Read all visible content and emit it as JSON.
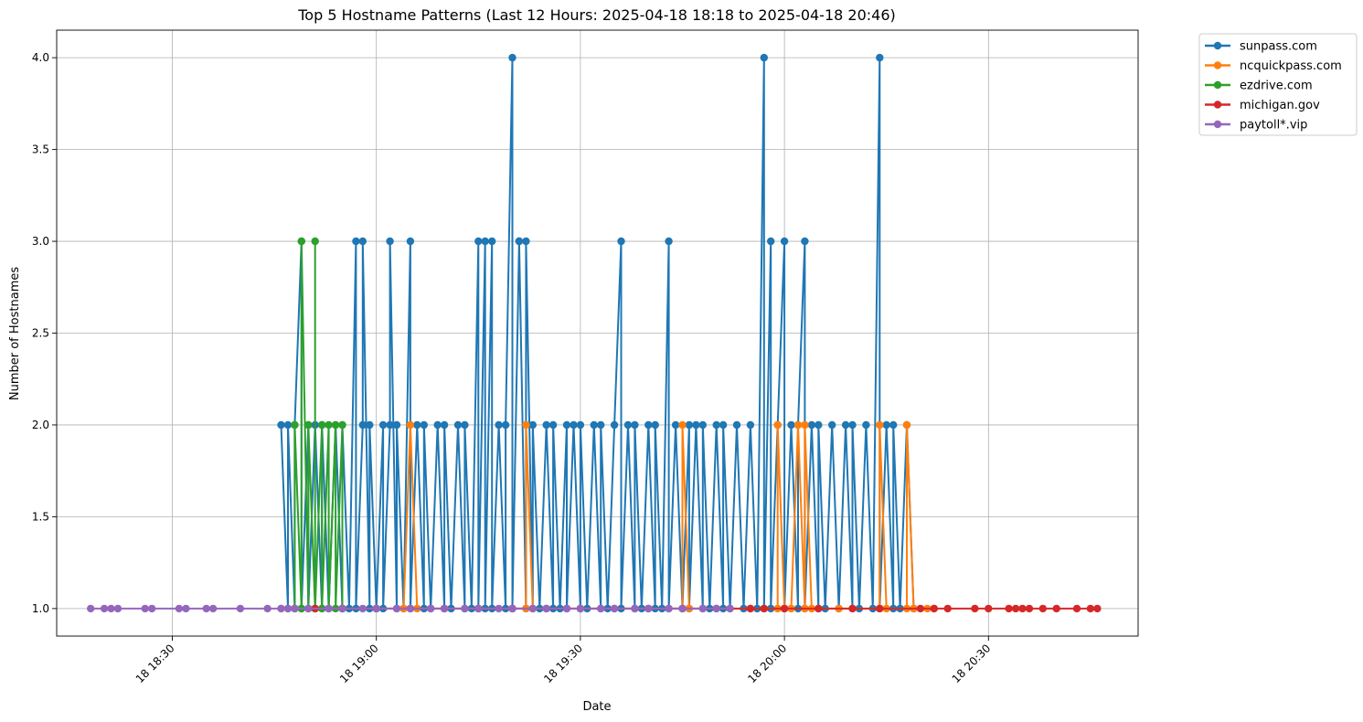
{
  "chart_data": {
    "type": "line",
    "title": "Top 5 Hostname Patterns (Last 12 Hours: 2025-04-18 18:18 to 2025-04-18 20:46)",
    "xlabel": "Date",
    "ylabel": "Number of Hostnames",
    "x_unit": "time (HH:MM on 2025-04-18)",
    "xlim": [
      "18:13",
      "20:52"
    ],
    "ylim": [
      0.85,
      4.15
    ],
    "x_ticks": [
      {
        "t": "18:30",
        "label": "18 18:30"
      },
      {
        "t": "19:00",
        "label": "18 19:00"
      },
      {
        "t": "19:30",
        "label": "18 19:30"
      },
      {
        "t": "20:00",
        "label": "18 20:00"
      },
      {
        "t": "20:30",
        "label": "18 20:30"
      }
    ],
    "y_ticks": [
      {
        "v": 1.0,
        "label": "1.0"
      },
      {
        "v": 1.5,
        "label": "1.5"
      },
      {
        "v": 2.0,
        "label": "2.0"
      },
      {
        "v": 2.5,
        "label": "2.5"
      },
      {
        "v": 3.0,
        "label": "3.0"
      },
      {
        "v": 3.5,
        "label": "3.5"
      },
      {
        "v": 4.0,
        "label": "4.0"
      }
    ],
    "grid": true,
    "legend_position": "outside top-right",
    "series": [
      {
        "name": "sunpass.com",
        "color": "#1f77b4",
        "points": [
          [
            "18:46",
            2
          ],
          [
            "18:47",
            1
          ],
          [
            "18:47",
            2
          ],
          [
            "18:48",
            1
          ],
          [
            "18:48",
            2
          ],
          [
            "18:49",
            3
          ],
          [
            "18:49",
            1
          ],
          [
            "18:50",
            2
          ],
          [
            "18:50",
            1
          ],
          [
            "18:51",
            2
          ],
          [
            "18:52",
            1
          ],
          [
            "18:52",
            2
          ],
          [
            "18:53",
            1
          ],
          [
            "18:54",
            2
          ],
          [
            "18:55",
            1
          ],
          [
            "18:55",
            2
          ],
          [
            "18:56",
            1
          ],
          [
            "18:57",
            3
          ],
          [
            "18:57",
            1
          ],
          [
            "18:58",
            2
          ],
          [
            "18:58",
            3
          ],
          [
            "18:59",
            1
          ],
          [
            "18:59",
            2
          ],
          [
            "19:00",
            1
          ],
          [
            "19:01",
            2
          ],
          [
            "19:01",
            1
          ],
          [
            "19:02",
            2
          ],
          [
            "19:02",
            3
          ],
          [
            "19:03",
            1
          ],
          [
            "19:03",
            2
          ],
          [
            "19:04",
            1
          ],
          [
            "19:05",
            3
          ],
          [
            "19:05",
            1
          ],
          [
            "19:06",
            2
          ],
          [
            "19:07",
            1
          ],
          [
            "19:07",
            2
          ],
          [
            "19:08",
            1
          ],
          [
            "19:09",
            2
          ],
          [
            "19:10",
            1
          ],
          [
            "19:10",
            2
          ],
          [
            "19:11",
            1
          ],
          [
            "19:12",
            2
          ],
          [
            "19:13",
            1
          ],
          [
            "19:13",
            2
          ],
          [
            "19:14",
            1
          ],
          [
            "19:15",
            3
          ],
          [
            "19:15",
            1
          ],
          [
            "19:16",
            3
          ],
          [
            "19:16",
            1
          ],
          [
            "19:17",
            3
          ],
          [
            "19:17",
            1
          ],
          [
            "19:18",
            2
          ],
          [
            "19:19",
            1
          ],
          [
            "19:19",
            2
          ],
          [
            "19:20",
            4
          ],
          [
            "19:20",
            1
          ],
          [
            "19:21",
            3
          ],
          [
            "19:21",
            3
          ],
          [
            "19:22",
            1
          ],
          [
            "19:22",
            3
          ],
          [
            "19:23",
            1
          ],
          [
            "19:23",
            2
          ],
          [
            "19:24",
            1
          ],
          [
            "19:25",
            2
          ],
          [
            "19:26",
            1
          ],
          [
            "19:26",
            2
          ],
          [
            "19:27",
            1
          ],
          [
            "19:28",
            2
          ],
          [
            "19:28",
            1
          ],
          [
            "19:29",
            2
          ],
          [
            "19:30",
            1
          ],
          [
            "19:30",
            2
          ],
          [
            "19:31",
            1
          ],
          [
            "19:32",
            2
          ],
          [
            "19:33",
            1
          ],
          [
            "19:33",
            2
          ],
          [
            "19:34",
            1
          ],
          [
            "19:35",
            2
          ],
          [
            "19:36",
            3
          ],
          [
            "19:36",
            1
          ],
          [
            "19:37",
            2
          ],
          [
            "19:38",
            1
          ],
          [
            "19:38",
            2
          ],
          [
            "19:39",
            1
          ],
          [
            "19:40",
            2
          ],
          [
            "19:41",
            1
          ],
          [
            "19:41",
            2
          ],
          [
            "19:42",
            1
          ],
          [
            "19:43",
            3
          ],
          [
            "19:43",
            1
          ],
          [
            "19:44",
            2
          ],
          [
            "19:45",
            1
          ],
          [
            "19:46",
            2
          ],
          [
            "19:46",
            1
          ],
          [
            "19:47",
            2
          ],
          [
            "19:48",
            1
          ],
          [
            "19:48",
            2
          ],
          [
            "19:49",
            1
          ],
          [
            "19:50",
            2
          ],
          [
            "19:51",
            1
          ],
          [
            "19:51",
            2
          ],
          [
            "19:52",
            1
          ],
          [
            "19:53",
            2
          ],
          [
            "19:54",
            1
          ],
          [
            "19:55",
            2
          ],
          [
            "19:56",
            1
          ],
          [
            "19:57",
            4
          ],
          [
            "19:57",
            1
          ],
          [
            "19:58",
            3
          ],
          [
            "19:58",
            1
          ],
          [
            "19:59",
            2
          ],
          [
            "20:00",
            3
          ],
          [
            "20:00",
            1
          ],
          [
            "20:01",
            2
          ],
          [
            "20:02",
            1
          ],
          [
            "20:02",
            2
          ],
          [
            "20:03",
            3
          ],
          [
            "20:03",
            1
          ],
          [
            "20:04",
            2
          ],
          [
            "20:05",
            1
          ],
          [
            "20:05",
            2
          ],
          [
            "20:06",
            1
          ],
          [
            "20:07",
            2
          ],
          [
            "20:08",
            1
          ],
          [
            "20:09",
            2
          ],
          [
            "20:10",
            1
          ],
          [
            "20:10",
            2
          ],
          [
            "20:11",
            1
          ],
          [
            "20:12",
            2
          ],
          [
            "20:13",
            1
          ],
          [
            "20:14",
            4
          ],
          [
            "20:14",
            1
          ],
          [
            "20:15",
            2
          ],
          [
            "20:16",
            1
          ],
          [
            "20:16",
            2
          ],
          [
            "20:17",
            1
          ],
          [
            "20:18",
            2
          ],
          [
            "20:19",
            1
          ]
        ]
      },
      {
        "name": "ncquickpass.com",
        "color": "#ff7f0e",
        "points": [
          [
            "18:46",
            1
          ],
          [
            "18:55",
            1
          ],
          [
            "19:00",
            1
          ],
          [
            "19:04",
            1
          ],
          [
            "19:05",
            2
          ],
          [
            "19:06",
            1
          ],
          [
            "19:15",
            1
          ],
          [
            "19:22",
            1
          ],
          [
            "19:22",
            2
          ],
          [
            "19:23",
            1
          ],
          [
            "19:30",
            1
          ],
          [
            "19:40",
            1
          ],
          [
            "19:45",
            1
          ],
          [
            "19:45",
            2
          ],
          [
            "19:46",
            1
          ],
          [
            "19:55",
            1
          ],
          [
            "19:59",
            1
          ],
          [
            "19:59",
            2
          ],
          [
            "20:00",
            1
          ],
          [
            "20:01",
            1
          ],
          [
            "20:02",
            2
          ],
          [
            "20:03",
            1
          ],
          [
            "20:03",
            2
          ],
          [
            "20:04",
            1
          ],
          [
            "20:08",
            1
          ],
          [
            "20:14",
            1
          ],
          [
            "20:14",
            2
          ],
          [
            "20:15",
            1
          ],
          [
            "20:18",
            1
          ],
          [
            "20:18",
            2
          ],
          [
            "20:19",
            1
          ],
          [
            "20:21",
            1
          ],
          [
            "20:22",
            1
          ]
        ]
      },
      {
        "name": "ezdrive.com",
        "color": "#2ca02c",
        "points": [
          [
            "18:48",
            1
          ],
          [
            "18:48",
            2
          ],
          [
            "18:49",
            1
          ],
          [
            "18:49",
            3
          ],
          [
            "18:50",
            1
          ],
          [
            "18:50",
            2
          ],
          [
            "18:51",
            1
          ],
          [
            "18:51",
            3
          ],
          [
            "18:51",
            1
          ],
          [
            "18:52",
            2
          ],
          [
            "18:52",
            1
          ],
          [
            "18:53",
            2
          ],
          [
            "18:53",
            1
          ],
          [
            "18:54",
            2
          ],
          [
            "18:54",
            1
          ],
          [
            "18:55",
            2
          ],
          [
            "18:55",
            1
          ]
        ]
      },
      {
        "name": "michigan.gov",
        "color": "#d62728",
        "points": [
          [
            "18:51",
            1
          ],
          [
            "18:55",
            1
          ],
          [
            "19:00",
            1
          ],
          [
            "19:05",
            1
          ],
          [
            "19:10",
            1
          ],
          [
            "19:15",
            1
          ],
          [
            "19:20",
            1
          ],
          [
            "19:25",
            1
          ],
          [
            "19:30",
            1
          ],
          [
            "19:35",
            1
          ],
          [
            "19:40",
            1
          ],
          [
            "19:45",
            1
          ],
          [
            "19:50",
            1
          ],
          [
            "19:55",
            1
          ],
          [
            "19:57",
            1
          ],
          [
            "20:00",
            1
          ],
          [
            "20:05",
            1
          ],
          [
            "20:10",
            1
          ],
          [
            "20:14",
            1
          ],
          [
            "20:20",
            1
          ],
          [
            "20:22",
            1
          ],
          [
            "20:24",
            1
          ],
          [
            "20:28",
            1
          ],
          [
            "20:30",
            1
          ],
          [
            "20:33",
            1
          ],
          [
            "20:34",
            1
          ],
          [
            "20:35",
            1
          ],
          [
            "20:36",
            1
          ],
          [
            "20:38",
            1
          ],
          [
            "20:40",
            1
          ],
          [
            "20:43",
            1
          ],
          [
            "20:45",
            1
          ],
          [
            "20:46",
            1
          ]
        ]
      },
      {
        "name": "paytoll*.vip",
        "color": "#9467bd",
        "points": [
          [
            "18:18",
            1
          ],
          [
            "18:20",
            1
          ],
          [
            "18:21",
            1
          ],
          [
            "18:22",
            1
          ],
          [
            "18:26",
            1
          ],
          [
            "18:27",
            1
          ],
          [
            "18:31",
            1
          ],
          [
            "18:32",
            1
          ],
          [
            "18:35",
            1
          ],
          [
            "18:36",
            1
          ],
          [
            "18:40",
            1
          ],
          [
            "18:44",
            1
          ],
          [
            "18:46",
            1
          ],
          [
            "18:47",
            1
          ],
          [
            "18:48",
            1
          ],
          [
            "18:50",
            1
          ],
          [
            "18:53",
            1
          ],
          [
            "18:55",
            1
          ],
          [
            "18:58",
            1
          ],
          [
            "19:00",
            1
          ],
          [
            "19:03",
            1
          ],
          [
            "19:05",
            1
          ],
          [
            "19:08",
            1
          ],
          [
            "19:10",
            1
          ],
          [
            "19:13",
            1
          ],
          [
            "19:15",
            1
          ],
          [
            "19:18",
            1
          ],
          [
            "19:20",
            1
          ],
          [
            "19:23",
            1
          ],
          [
            "19:25",
            1
          ],
          [
            "19:28",
            1
          ],
          [
            "19:30",
            1
          ],
          [
            "19:33",
            1
          ],
          [
            "19:35",
            1
          ],
          [
            "19:38",
            1
          ],
          [
            "19:40",
            1
          ],
          [
            "19:43",
            1
          ],
          [
            "19:45",
            1
          ],
          [
            "19:48",
            1
          ],
          [
            "19:50",
            1
          ],
          [
            "19:52",
            1
          ]
        ]
      }
    ]
  }
}
